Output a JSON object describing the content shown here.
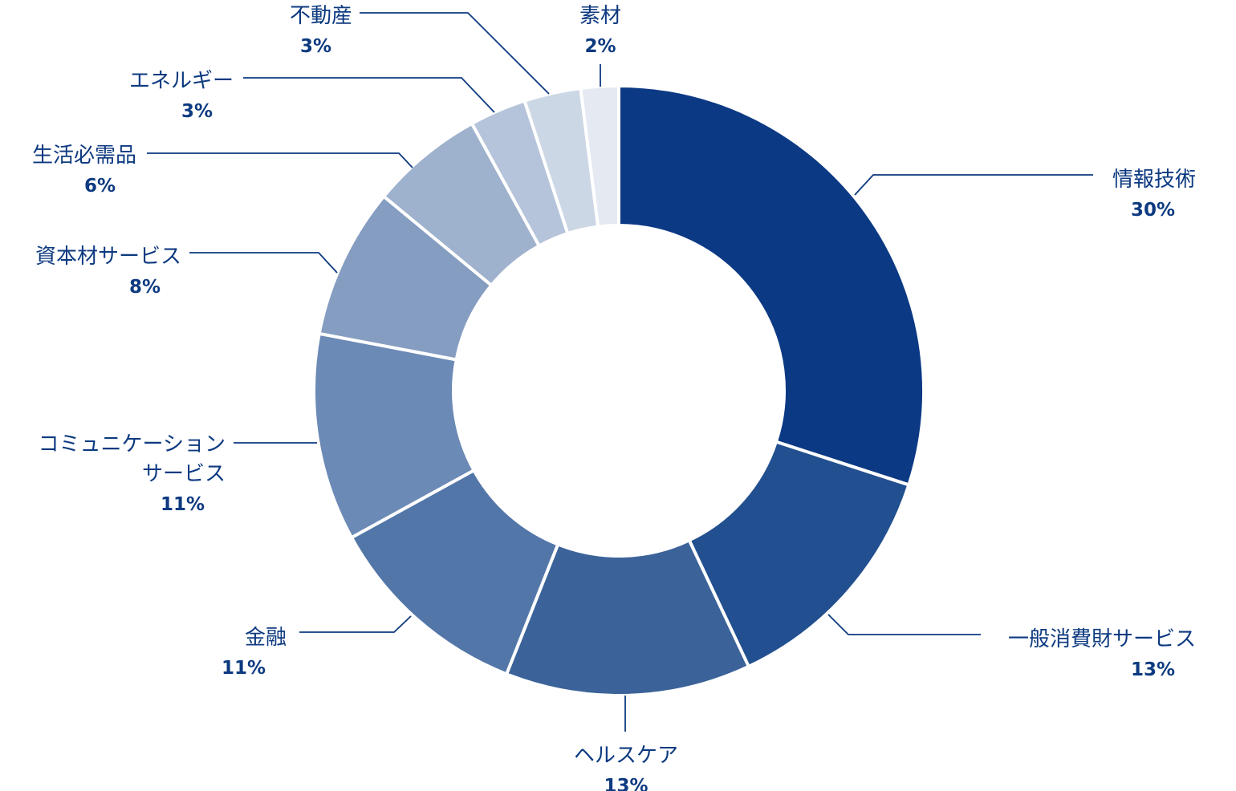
{
  "chart_data": {
    "type": "pie",
    "donut": true,
    "title": "",
    "legend": "none",
    "slices": [
      {
        "label": "情報技術",
        "value": 30,
        "value_label": "30%",
        "color": "#0c3984"
      },
      {
        "label": "一般消費財サービス",
        "value": 13,
        "value_label": "13%",
        "color": "#224f8f"
      },
      {
        "label": "ヘルスケア",
        "value": 13,
        "value_label": "13%",
        "color": "#3b6399"
      },
      {
        "label": "金融",
        "value": 11,
        "value_label": "11%",
        "color": "#5276a8"
      },
      {
        "label": [
          "コミュニケーション",
          "サービス"
        ],
        "value": 11,
        "value_label": "11%",
        "color": "#6c8ab6"
      },
      {
        "label": "資本材サービス",
        "value": 8,
        "value_label": "8%",
        "color": "#859dc1"
      },
      {
        "label": "生活必需品",
        "value": 6,
        "value_label": "6%",
        "color": "#9eb1cd"
      },
      {
        "label": "エネルギー",
        "value": 3,
        "value_label": "3%",
        "color": "#b5c4da"
      },
      {
        "label": "不動産",
        "value": 3,
        "value_label": "3%",
        "color": "#ccd7e6"
      },
      {
        "label": "素材",
        "value": 2,
        "value_label": "2%",
        "color": "#e4e9f2"
      }
    ]
  }
}
